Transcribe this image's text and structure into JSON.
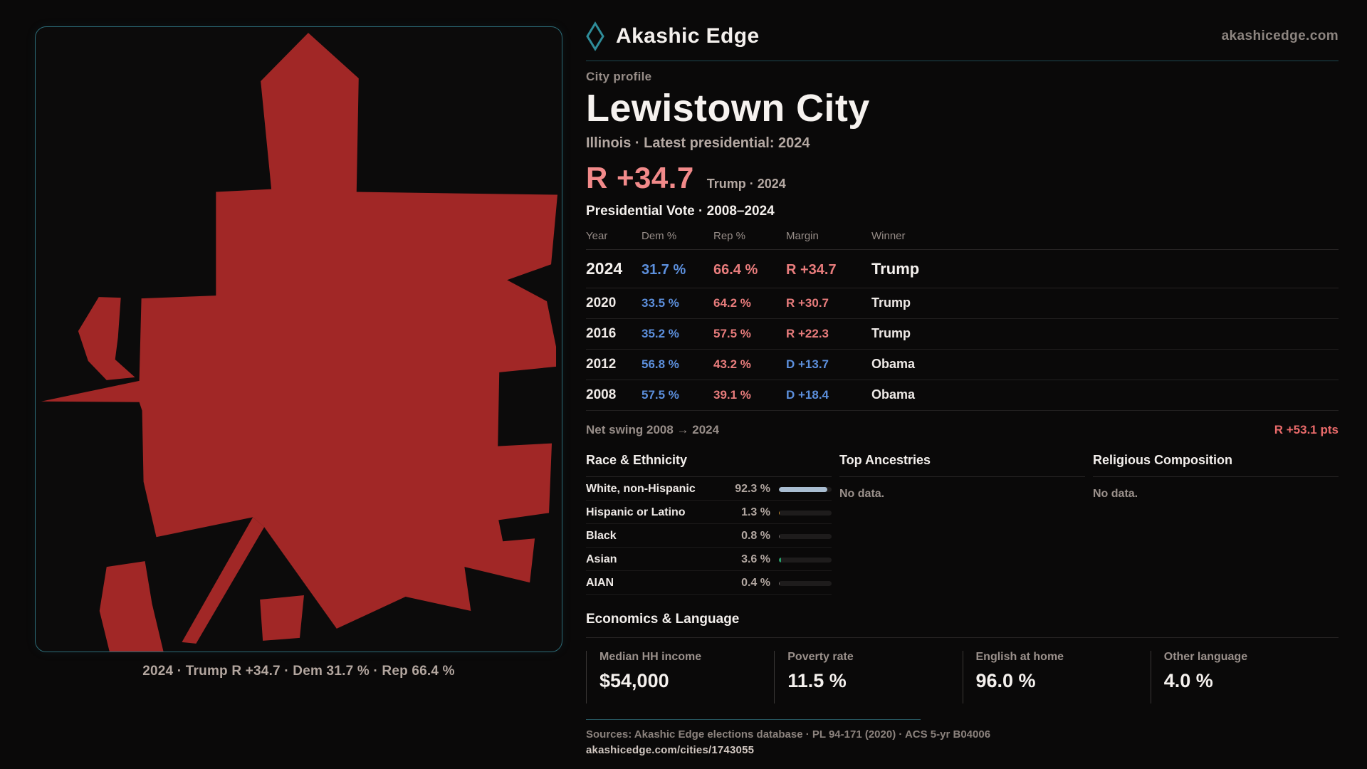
{
  "brand": {
    "name": "Akashic Edge",
    "domain": "akashicedge.com"
  },
  "map": {
    "caption": "2024 · Trump R +34.7 · Dem 31.7 % · Rep 66.4 %",
    "shape_color": "#a12726"
  },
  "profile": {
    "kicker": "City profile",
    "title": "Lewistown City",
    "subtitle": "Illinois · Latest presidential: 2024"
  },
  "headline": {
    "margin": "R +34.7",
    "context": "Trump · 2024"
  },
  "vote_table": {
    "title": "Presidential Vote · 2008–2024",
    "columns": [
      "Year",
      "Dem %",
      "Rep %",
      "Margin",
      "Winner"
    ],
    "rows": [
      {
        "year": "2024",
        "dem": "31.7 %",
        "rep": "66.4 %",
        "margin": "R +34.7",
        "margin_party": "R",
        "winner": "Trump"
      },
      {
        "year": "2020",
        "dem": "33.5 %",
        "rep": "64.2 %",
        "margin": "R +30.7",
        "margin_party": "R",
        "winner": "Trump"
      },
      {
        "year": "2016",
        "dem": "35.2 %",
        "rep": "57.5 %",
        "margin": "R +22.3",
        "margin_party": "R",
        "winner": "Trump"
      },
      {
        "year": "2012",
        "dem": "56.8 %",
        "rep": "43.2 %",
        "margin": "D +13.7",
        "margin_party": "D",
        "winner": "Obama"
      },
      {
        "year": "2008",
        "dem": "57.5 %",
        "rep": "39.1 %",
        "margin": "D +18.4",
        "margin_party": "D",
        "winner": "Obama"
      }
    ]
  },
  "net_swing": {
    "label": "Net swing 2008 → 2024",
    "value": "R +53.1 pts"
  },
  "race_ethnicity": {
    "title": "Race & Ethnicity",
    "rows": [
      {
        "label": "White, non-Hispanic",
        "value": "92.3 %",
        "pct": 92.3,
        "bar_color": "#a9bdd1"
      },
      {
        "label": "Hispanic or Latino",
        "value": "1.3 %",
        "pct": 1.3,
        "bar_color": "#c78a28"
      },
      {
        "label": "Black",
        "value": "0.8 %",
        "pct": 0.8,
        "bar_color": "#6f6a68"
      },
      {
        "label": "Asian",
        "value": "3.6 %",
        "pct": 3.6,
        "bar_color": "#27a06a"
      },
      {
        "label": "AIAN",
        "value": "0.4 %",
        "pct": 0.4,
        "bar_color": "#6f6a68"
      }
    ]
  },
  "ancestries": {
    "title": "Top Ancestries",
    "empty": "No data."
  },
  "religion": {
    "title": "Religious Composition",
    "empty": "No data."
  },
  "economics": {
    "title": "Economics & Language",
    "stats": [
      {
        "label": "Median HH income",
        "value": "$54,000"
      },
      {
        "label": "Poverty rate",
        "value": "11.5 %"
      },
      {
        "label": "English at home",
        "value": "96.0 %"
      },
      {
        "label": "Other language",
        "value": "4.0 %"
      }
    ]
  },
  "footer": {
    "sources": "Sources: Akashic Edge elections database · PL 94-171 (2020) · ACS 5-yr B04006",
    "permalink": "akashicedge.com/cities/1743055"
  },
  "colors": {
    "accent_teal": "#2f8d9a",
    "dem_blue": "#5c8fdc",
    "rep_red": "#e87c7c",
    "headline_red": "#f28a8a",
    "swing_red": "#e96a6a"
  }
}
